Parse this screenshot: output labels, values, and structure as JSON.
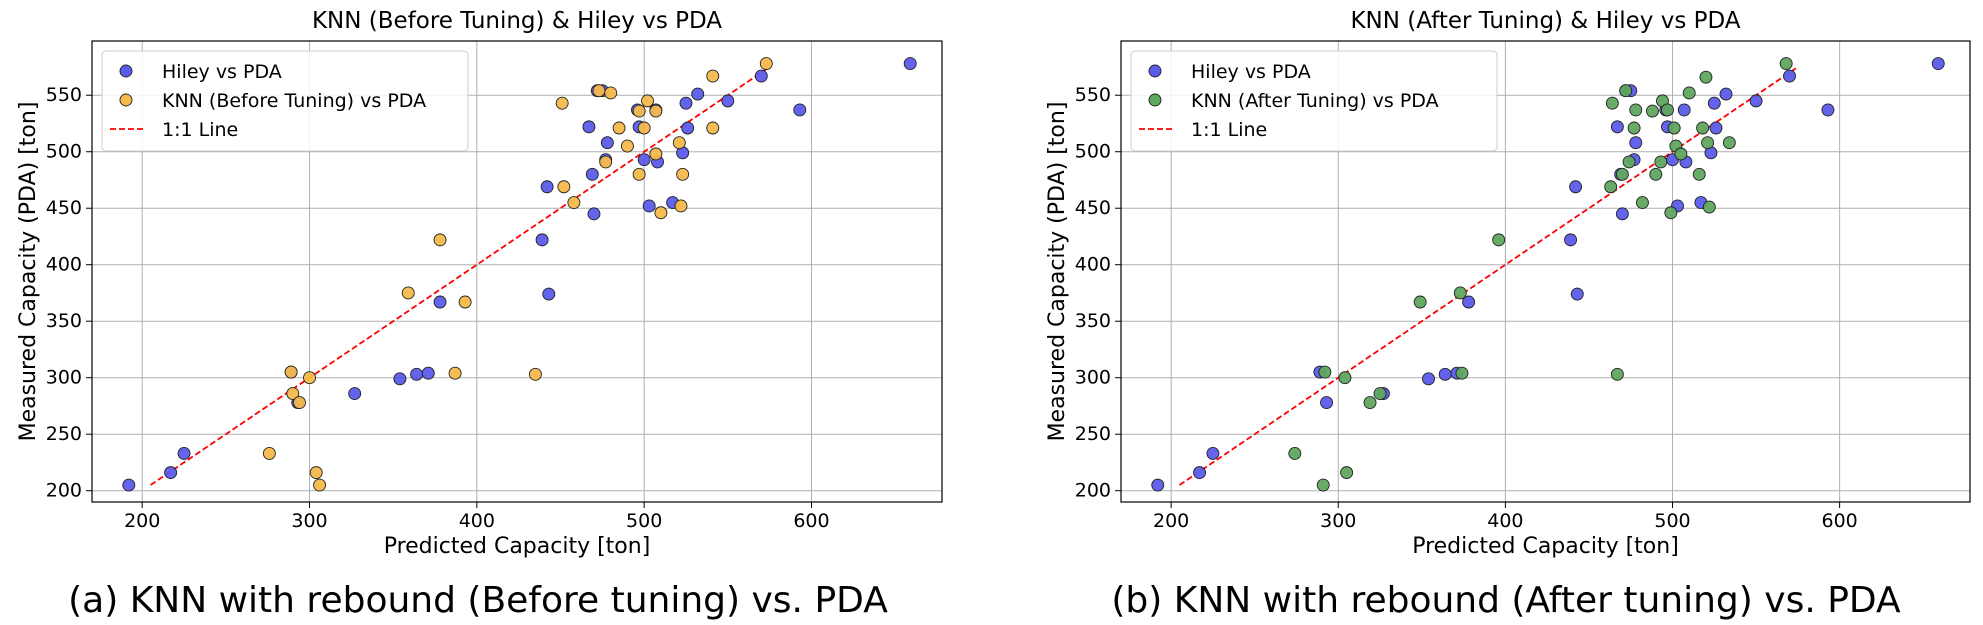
{
  "chart_data": [
    {
      "type": "scatter",
      "title": "KNN (Before Tuning) & Hiley vs PDA",
      "xlabel": "Predicted Capacity [ton]",
      "ylabel": "Measured Capacity (PDA) [ton]",
      "xlim": [
        170,
        678
      ],
      "ylim": [
        190,
        598
      ],
      "xticks": [
        200,
        300,
        400,
        500,
        600
      ],
      "yticks": [
        200,
        250,
        300,
        350,
        400,
        450,
        500,
        550
      ],
      "grid": true,
      "legend_position": "top-left",
      "caption": "(a) KNN with rebound (Before tuning) vs. PDA",
      "reference_line": {
        "name": "1:1 Line",
        "color": "#ff0000",
        "x": [
          205,
          575
        ],
        "y": [
          205,
          575
        ]
      },
      "series": [
        {
          "name": "Hiley vs PDA",
          "color": "#5b5bea",
          "points": [
            [
              192,
              205
            ],
            [
              217,
              216
            ],
            [
              225,
              233
            ],
            [
              289,
              305
            ],
            [
              293,
              278
            ],
            [
              327,
              286
            ],
            [
              354,
              299
            ],
            [
              364,
              303
            ],
            [
              371,
              304
            ],
            [
              378,
              367
            ],
            [
              439,
              422
            ],
            [
              442,
              469
            ],
            [
              443,
              374
            ],
            [
              467,
              522
            ],
            [
              470,
              445
            ],
            [
              469,
              480
            ],
            [
              472,
              554
            ],
            [
              475,
              554
            ],
            [
              477,
              493
            ],
            [
              478,
              508
            ],
            [
              496,
              537
            ],
            [
              497,
              522
            ],
            [
              500,
              493
            ],
            [
              503,
              452
            ],
            [
              507,
              537
            ],
            [
              508,
              491
            ],
            [
              517,
              455
            ],
            [
              523,
              499
            ],
            [
              525,
              543
            ],
            [
              526,
              521
            ],
            [
              532,
              551
            ],
            [
              550,
              545
            ],
            [
              570,
              567
            ],
            [
              593,
              537
            ],
            [
              659,
              578
            ]
          ]
        },
        {
          "name": "KNN (Before Tuning) vs PDA",
          "color": "#f6b94c",
          "points": [
            [
              276,
              233
            ],
            [
              289,
              305
            ],
            [
              290,
              286
            ],
            [
              294,
              278
            ],
            [
              300,
              300
            ],
            [
              304,
              216
            ],
            [
              306,
              205
            ],
            [
              359,
              375
            ],
            [
              378,
              422
            ],
            [
              387,
              304
            ],
            [
              393,
              367
            ],
            [
              435,
              303
            ],
            [
              451,
              543
            ],
            [
              452,
              469
            ],
            [
              458,
              455
            ],
            [
              473,
              554
            ],
            [
              477,
              491
            ],
            [
              480,
              552
            ],
            [
              485,
              521
            ],
            [
              490,
              505
            ],
            [
              497,
              536
            ],
            [
              497,
              480
            ],
            [
              500,
              521
            ],
            [
              502,
              545
            ],
            [
              507,
              536
            ],
            [
              507,
              498
            ],
            [
              510,
              446
            ],
            [
              521,
              508
            ],
            [
              522,
              452
            ],
            [
              523,
              480
            ],
            [
              541,
              567
            ],
            [
              541,
              521
            ],
            [
              573,
              578
            ]
          ]
        }
      ]
    },
    {
      "type": "scatter",
      "title": "KNN (After Tuning) & Hiley vs PDA",
      "xlabel": "Predicted Capacity [ton]",
      "ylabel": "Measured Capacity (PDA) [ton]",
      "xlim": [
        170,
        678
      ],
      "ylim": [
        190,
        598
      ],
      "xticks": [
        200,
        300,
        400,
        500,
        600
      ],
      "yticks": [
        200,
        250,
        300,
        350,
        400,
        450,
        500,
        550
      ],
      "grid": true,
      "legend_position": "top-left",
      "caption": "(b) KNN with rebound (After tuning) vs. PDA",
      "reference_line": {
        "name": "1:1 Line",
        "color": "#ff0000",
        "x": [
          205,
          575
        ],
        "y": [
          205,
          575
        ]
      },
      "series": [
        {
          "name": "Hiley vs PDA",
          "color": "#5b5bea",
          "points": [
            [
              192,
              205
            ],
            [
              217,
              216
            ],
            [
              225,
              233
            ],
            [
              289,
              305
            ],
            [
              293,
              278
            ],
            [
              327,
              286
            ],
            [
              354,
              299
            ],
            [
              364,
              303
            ],
            [
              371,
              304
            ],
            [
              378,
              367
            ],
            [
              439,
              422
            ],
            [
              442,
              469
            ],
            [
              443,
              374
            ],
            [
              467,
              522
            ],
            [
              470,
              445
            ],
            [
              469,
              480
            ],
            [
              472,
              554
            ],
            [
              475,
              554
            ],
            [
              477,
              493
            ],
            [
              478,
              508
            ],
            [
              496,
              537
            ],
            [
              497,
              522
            ],
            [
              500,
              493
            ],
            [
              503,
              452
            ],
            [
              507,
              537
            ],
            [
              508,
              491
            ],
            [
              517,
              455
            ],
            [
              523,
              499
            ],
            [
              525,
              543
            ],
            [
              526,
              521
            ],
            [
              532,
              551
            ],
            [
              550,
              545
            ],
            [
              570,
              567
            ],
            [
              593,
              537
            ],
            [
              659,
              578
            ]
          ]
        },
        {
          "name": "KNN (After Tuning) vs PDA",
          "color": "#5fa65f",
          "points": [
            [
              274,
              233
            ],
            [
              291,
              205
            ],
            [
              292,
              305
            ],
            [
              304,
              300
            ],
            [
              305,
              216
            ],
            [
              319,
              278
            ],
            [
              325,
              286
            ],
            [
              349,
              367
            ],
            [
              373,
              375
            ],
            [
              374,
              304
            ],
            [
              396,
              422
            ],
            [
              463,
              469
            ],
            [
              464,
              543
            ],
            [
              467,
              303
            ],
            [
              470,
              480
            ],
            [
              472,
              554
            ],
            [
              474,
              491
            ],
            [
              477,
              521
            ],
            [
              478,
              537
            ],
            [
              482,
              455
            ],
            [
              488,
              536
            ],
            [
              490,
              480
            ],
            [
              493,
              491
            ],
            [
              494,
              545
            ],
            [
              497,
              537
            ],
            [
              499,
              446
            ],
            [
              501,
              521
            ],
            [
              502,
              505
            ],
            [
              505,
              498
            ],
            [
              510,
              552
            ],
            [
              516,
              480
            ],
            [
              518,
              521
            ],
            [
              520,
              566
            ],
            [
              521,
              508
            ],
            [
              522,
              451
            ],
            [
              534,
              508
            ],
            [
              568,
              578
            ]
          ]
        }
      ]
    }
  ]
}
